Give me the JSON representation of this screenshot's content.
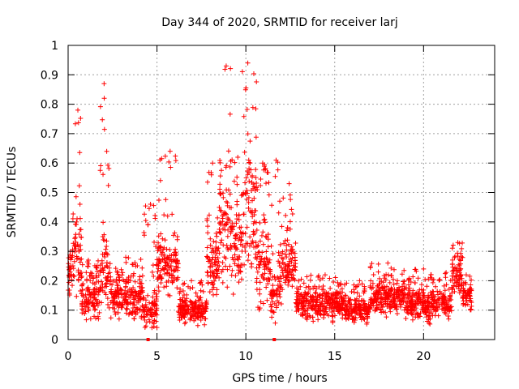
{
  "chart_data": {
    "type": "scatter",
    "title": "Day 344 of 2020, SRMTID for receiver larj",
    "xlabel": "GPS time / hours",
    "ylabel": "SRMTID / TECUs",
    "xlim": [
      0,
      24
    ],
    "ylim": [
      0,
      1
    ],
    "x_ticks": [
      0,
      5,
      10,
      15,
      20
    ],
    "x_tick_labels": [
      "0",
      "5",
      "10",
      "15",
      "20"
    ],
    "y_ticks": [
      0,
      0.1,
      0.2,
      0.3,
      0.4,
      0.5,
      0.6,
      0.7,
      0.8,
      0.9,
      1
    ],
    "y_tick_labels": [
      "0",
      "0.1",
      "0.2",
      "0.3",
      "0.4",
      "0.5",
      "0.6",
      "0.7",
      "0.8",
      "0.9",
      "1"
    ],
    "grid": true,
    "marker": "plus",
    "color": "#ff0000",
    "time_span_hours": [
      0,
      22.7
    ],
    "baseline_markers_x": [
      4.5,
      11.6
    ],
    "activity_segments": [
      {
        "t": [
          0.0,
          0.25
        ],
        "base": 0.22,
        "peak": 0.3,
        "spread": 0.06
      },
      {
        "t": [
          0.25,
          0.75
        ],
        "base": 0.3,
        "peak": 0.78,
        "spread": 0.1
      },
      {
        "t": [
          0.75,
          1.8
        ],
        "base": 0.14,
        "peak": 0.27,
        "spread": 0.05
      },
      {
        "t": [
          1.8,
          2.4
        ],
        "base": 0.22,
        "peak": 0.87,
        "spread": 0.08
      },
      {
        "t": [
          2.4,
          4.2
        ],
        "base": 0.14,
        "peak": 0.28,
        "spread": 0.05
      },
      {
        "t": [
          4.2,
          5.0
        ],
        "base": 0.1,
        "peak": 0.46,
        "spread": 0.05
      },
      {
        "t": [
          5.0,
          6.2
        ],
        "base": 0.25,
        "peak": 0.64,
        "spread": 0.07
      },
      {
        "t": [
          6.2,
          7.8
        ],
        "base": 0.1,
        "peak": 0.2,
        "spread": 0.03
      },
      {
        "t": [
          7.8,
          8.5
        ],
        "base": 0.25,
        "peak": 0.6,
        "spread": 0.08
      },
      {
        "t": [
          8.5,
          9.2
        ],
        "base": 0.4,
        "peak": 0.93,
        "spread": 0.15
      },
      {
        "t": [
          9.2,
          9.8
        ],
        "base": 0.3,
        "peak": 0.62,
        "spread": 0.1
      },
      {
        "t": [
          9.8,
          10.6
        ],
        "base": 0.45,
        "peak": 0.94,
        "spread": 0.15
      },
      {
        "t": [
          10.6,
          11.4
        ],
        "base": 0.25,
        "peak": 0.6,
        "spread": 0.1
      },
      {
        "t": [
          11.4,
          12.0
        ],
        "base": 0.15,
        "peak": 0.61,
        "spread": 0.06
      },
      {
        "t": [
          12.0,
          12.8
        ],
        "base": 0.25,
        "peak": 0.53,
        "spread": 0.05
      },
      {
        "t": [
          12.8,
          15.5
        ],
        "base": 0.12,
        "peak": 0.22,
        "spread": 0.04
      },
      {
        "t": [
          15.5,
          17.0
        ],
        "base": 0.1,
        "peak": 0.2,
        "spread": 0.03
      },
      {
        "t": [
          17.0,
          19.0
        ],
        "base": 0.14,
        "peak": 0.26,
        "spread": 0.04
      },
      {
        "t": [
          19.0,
          21.6
        ],
        "base": 0.12,
        "peak": 0.24,
        "spread": 0.04
      },
      {
        "t": [
          21.6,
          22.2
        ],
        "base": 0.22,
        "peak": 0.33,
        "spread": 0.05
      },
      {
        "t": [
          22.2,
          22.7
        ],
        "base": 0.14,
        "peak": 0.22,
        "spread": 0.04
      }
    ]
  }
}
